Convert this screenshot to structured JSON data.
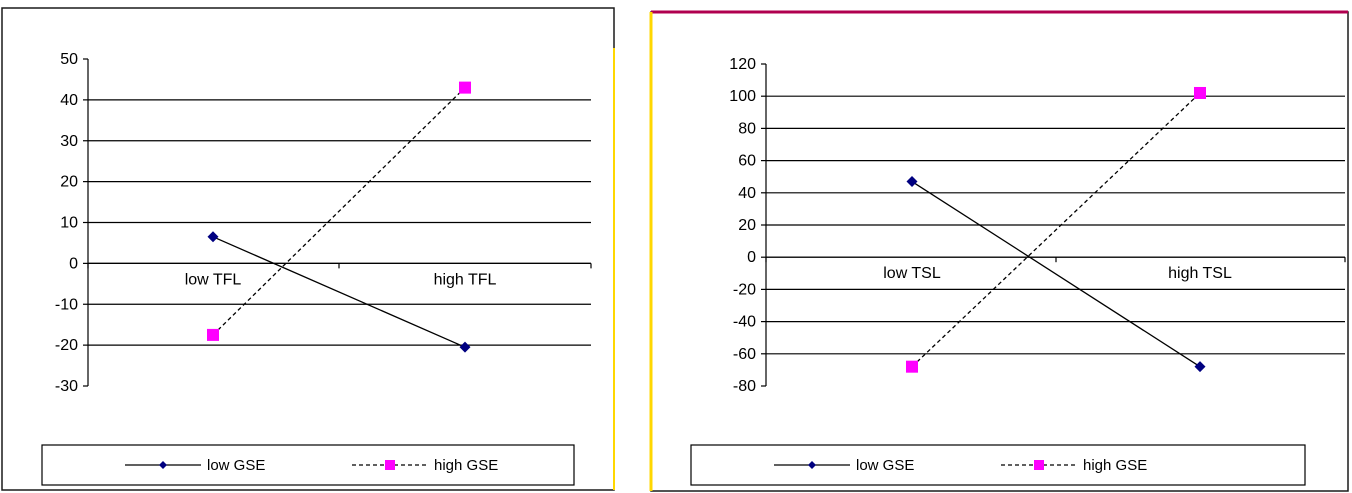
{
  "chart_data": [
    {
      "type": "line",
      "categories": [
        "low TFL",
        "high TFL"
      ],
      "ylim": [
        -30,
        50
      ],
      "yticks": [
        50,
        40,
        30,
        20,
        10,
        0,
        -10,
        -20,
        -30
      ],
      "grid": true,
      "legend_position": "bottom",
      "series": [
        {
          "name": "low GSE",
          "values": [
            6.5,
            -20.5
          ],
          "color": "#000080",
          "marker": "diamond",
          "line_style": "solid"
        },
        {
          "name": "high GSE",
          "values": [
            -17.5,
            43
          ],
          "color": "#ff00ff",
          "marker": "square",
          "line_style": "dashed"
        }
      ]
    },
    {
      "type": "line",
      "categories": [
        "low TSL",
        "high TSL"
      ],
      "ylim": [
        -80,
        120
      ],
      "yticks": [
        120,
        100,
        80,
        60,
        40,
        20,
        0,
        -20,
        -40,
        -60,
        -80
      ],
      "grid": true,
      "legend_position": "bottom",
      "series": [
        {
          "name": "low GSE",
          "values": [
            47,
            -68
          ],
          "color": "#000080",
          "marker": "diamond",
          "line_style": "solid"
        },
        {
          "name": "high GSE",
          "values": [
            -68,
            102
          ],
          "color": "#ff00ff",
          "marker": "square",
          "line_style": "dashed"
        }
      ]
    }
  ],
  "colors": {
    "frame_border": "#1a1a1a",
    "frame_accent_left": "#ffd700",
    "frame_accent_top": "#b0004f",
    "gridline": "#000000"
  }
}
